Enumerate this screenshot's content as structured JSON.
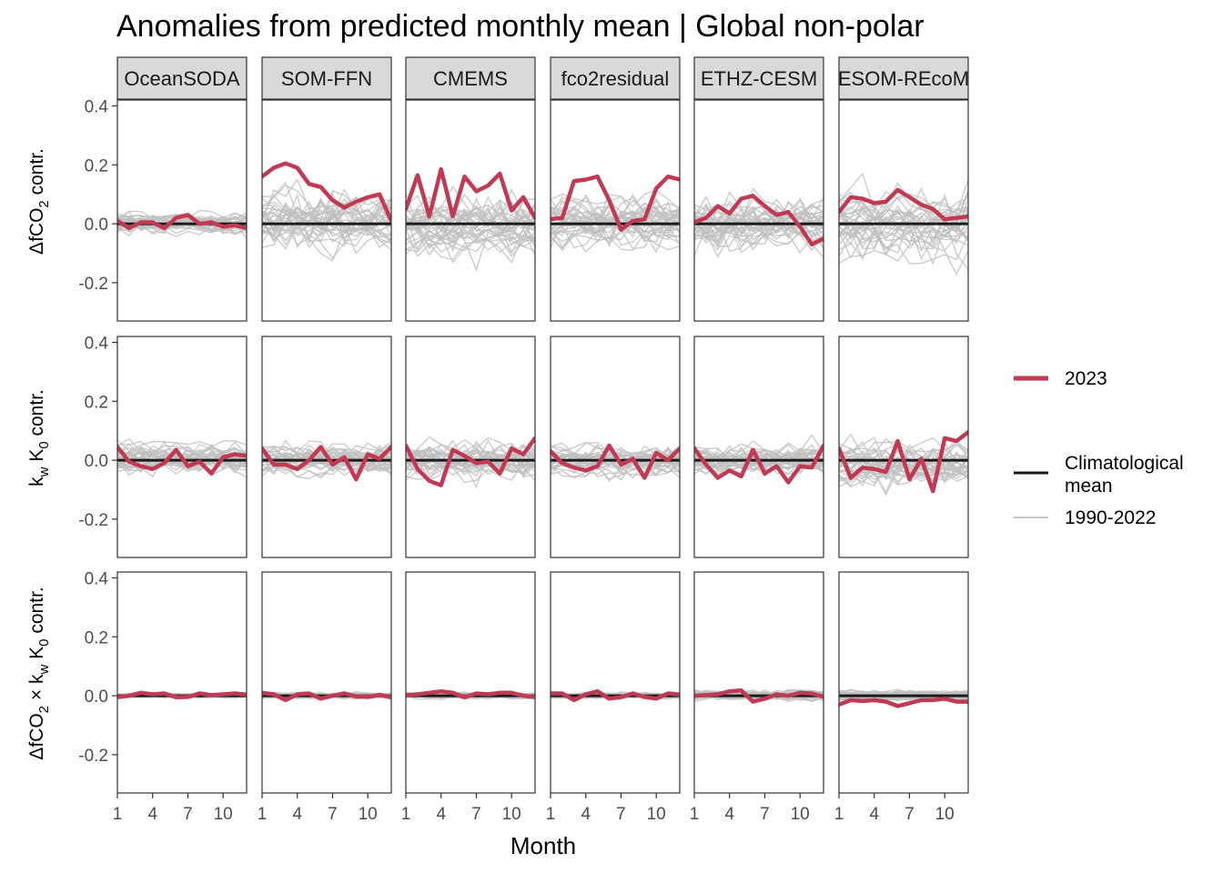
{
  "chart_data": {
    "type": "line",
    "title": "Anomalies from predicted monthly mean | Global non-polar",
    "xlabel": "Month",
    "x": [
      1,
      2,
      3,
      4,
      5,
      6,
      7,
      8,
      9,
      10,
      11,
      12
    ],
    "x_ticks": [
      1,
      4,
      7,
      10
    ],
    "x_tick_labels": [
      "1",
      "4",
      "7",
      "10"
    ],
    "ylim": [
      -0.33,
      0.42
    ],
    "y_ticks": [
      -0.2,
      0.0,
      0.2,
      0.4
    ],
    "y_tick_labels": [
      "-0.2",
      "0.0",
      "0.2",
      "0.4"
    ],
    "columns": [
      "OceanSODA",
      "SOM-FFN",
      "CMEMS",
      "fco2residual",
      "ETHZ-CESM",
      "ESOM-REcoM"
    ],
    "row_labels": [
      {
        "base": "ΔfCO",
        "sub": "2",
        "rest": " contr."
      },
      {
        "base": "k",
        "sub": "w",
        "mid": " K",
        "sub2": "0",
        "rest": " contr."
      },
      {
        "base": "ΔfCO",
        "sub": "2",
        "mid": " × k",
        "sub2": "w",
        "mid2": " K",
        "sub3": "0",
        "rest": " contr."
      }
    ],
    "legend": {
      "items": [
        {
          "label": "2023",
          "color": "#c03a54"
        },
        {
          "label": "Climatological",
          "label2": "mean",
          "color": "#1a1a1a"
        },
        {
          "label": "1990-2022",
          "color": "#c7c7c7"
        }
      ]
    },
    "colors": {
      "year_2023": "#c03a54",
      "climatological_mean": "#1a1a1a",
      "background_years": "#bfbfbf"
    },
    "background_years": {
      "label": "1990-2022",
      "n": 33,
      "spread": [
        [
          0.025,
          0.06,
          0.06,
          0.05,
          0.055,
          0.06
        ],
        [
          0.03,
          0.03,
          0.04,
          0.03,
          0.03,
          0.045
        ],
        [
          0.004,
          0.006,
          0.006,
          0.006,
          0.01,
          0.01
        ]
      ]
    },
    "climatological_mean": 0.0,
    "series_2023": [
      [
        [
          0.01,
          -0.015,
          0.005,
          0.005,
          -0.015,
          0.02,
          0.03,
          0.0,
          0.005,
          -0.01,
          -0.005,
          -0.015
        ],
        [
          0.16,
          0.19,
          0.205,
          0.19,
          0.135,
          0.125,
          0.08,
          0.055,
          0.075,
          0.09,
          0.1,
          0.01
        ],
        [
          0.05,
          0.165,
          0.025,
          0.185,
          0.025,
          0.16,
          0.11,
          0.13,
          0.17,
          0.045,
          0.09,
          0.02
        ],
        [
          0.015,
          0.02,
          0.145,
          0.15,
          0.16,
          0.08,
          -0.02,
          0.01,
          0.015,
          0.12,
          0.16,
          0.15
        ],
        [
          0.005,
          0.02,
          0.06,
          0.035,
          0.085,
          0.095,
          0.06,
          0.03,
          0.04,
          -0.01,
          -0.07,
          -0.05
        ],
        [
          0.04,
          0.09,
          0.085,
          0.07,
          0.075,
          0.115,
          0.09,
          0.065,
          0.05,
          0.015,
          0.02,
          0.025
        ]
      ],
      [
        [
          0.045,
          -0.005,
          -0.02,
          -0.03,
          -0.01,
          0.035,
          -0.02,
          -0.005,
          -0.045,
          0.01,
          0.02,
          0.015
        ],
        [
          0.04,
          -0.015,
          -0.015,
          -0.03,
          0.0,
          0.045,
          -0.015,
          0.01,
          -0.065,
          0.02,
          0.005,
          0.045
        ],
        [
          0.05,
          -0.03,
          -0.07,
          -0.085,
          0.035,
          0.015,
          -0.01,
          -0.005,
          -0.045,
          0.04,
          0.02,
          0.075
        ],
        [
          0.03,
          -0.01,
          -0.025,
          -0.035,
          -0.02,
          0.05,
          -0.015,
          0.005,
          -0.06,
          0.025,
          0.0,
          0.04
        ],
        [
          0.04,
          -0.015,
          -0.06,
          -0.035,
          -0.055,
          0.035,
          -0.045,
          -0.02,
          -0.075,
          -0.02,
          -0.025,
          0.05
        ],
        [
          0.04,
          -0.06,
          -0.025,
          -0.03,
          -0.04,
          0.065,
          -0.065,
          0.005,
          -0.105,
          0.075,
          0.065,
          0.095
        ]
      ],
      [
        [
          -0.005,
          0.0,
          0.01,
          0.005,
          0.008,
          -0.005,
          -0.004,
          0.008,
          0.002,
          0.005,
          0.008,
          0.004
        ],
        [
          0.01,
          0.005,
          -0.015,
          0.005,
          0.008,
          -0.01,
          0.0,
          0.008,
          -0.002,
          -0.004,
          0.003,
          -0.005
        ],
        [
          0.002,
          0.005,
          0.01,
          0.015,
          0.01,
          -0.005,
          0.008,
          0.005,
          0.01,
          0.01,
          0.0,
          -0.004
        ],
        [
          0.008,
          0.008,
          -0.015,
          0.005,
          0.015,
          -0.01,
          -0.005,
          0.008,
          -0.004,
          -0.01,
          0.008,
          0.004
        ],
        [
          0.0,
          0.002,
          0.005,
          0.015,
          0.018,
          -0.02,
          -0.01,
          0.005,
          0.0,
          0.01,
          0.008,
          -0.003
        ],
        [
          -0.03,
          -0.015,
          -0.018,
          -0.015,
          -0.02,
          -0.035,
          -0.025,
          -0.015,
          -0.015,
          -0.01,
          -0.02,
          -0.02
        ]
      ]
    ]
  }
}
